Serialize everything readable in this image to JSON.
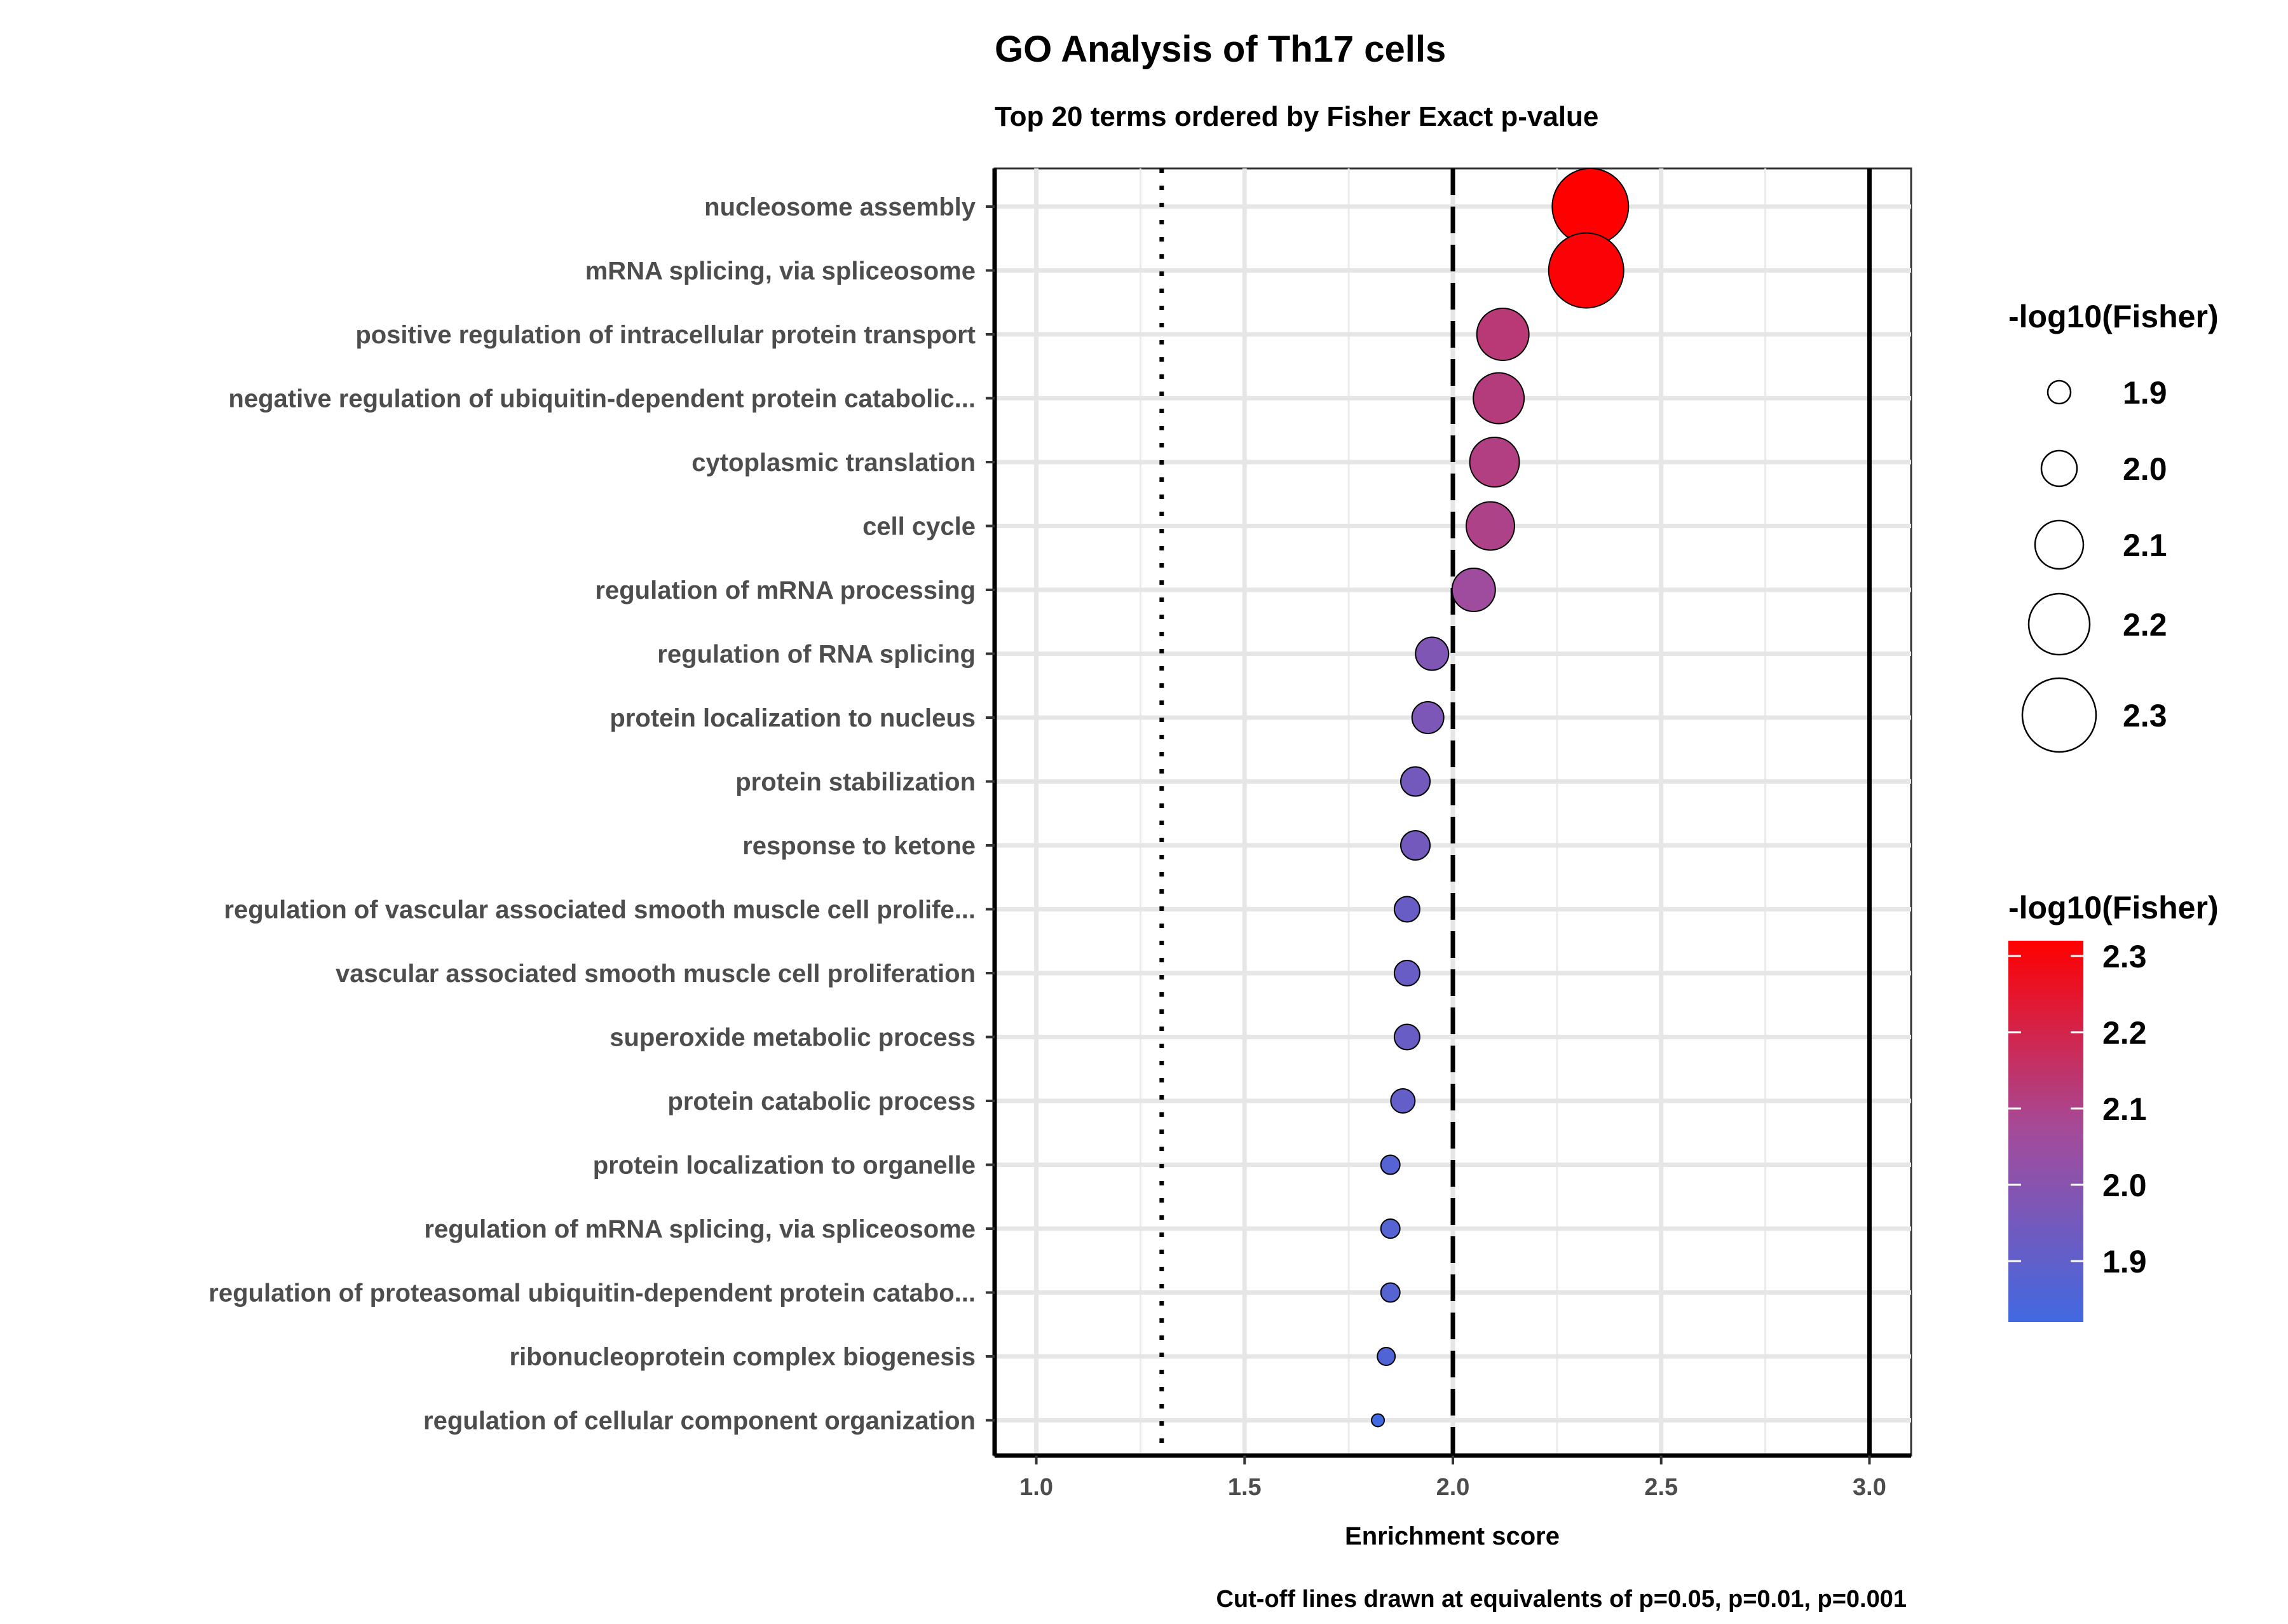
{
  "chart_data": {
    "type": "scatter",
    "title": "GO Analysis of Th17 cells",
    "subtitle": "Top 20 terms ordered by Fisher Exact p-value",
    "xlabel": "Enrichment score",
    "caption": "Cut-off lines drawn at equivalents of p=0.05, p=0.01, p=0.001",
    "xlim": [
      0.9,
      3.1
    ],
    "x_ticks": [
      1.0,
      1.5,
      2.0,
      2.5,
      3.0
    ],
    "x_tick_labels": [
      "1.0",
      "1.5",
      "2.0",
      "2.5",
      "3.0"
    ],
    "grid": true,
    "cutoff_lines": [
      {
        "p": 0.05,
        "x": 1.301,
        "style": "dotted"
      },
      {
        "p": 0.01,
        "x": 2.0,
        "style": "dashed"
      },
      {
        "p": 0.001,
        "x": 3.0,
        "style": "solid"
      }
    ],
    "terms": [
      {
        "label": "nucleosome assembly",
        "x": 2.33,
        "fisher": 2.32
      },
      {
        "label": "mRNA splicing, via spliceosome",
        "x": 2.32,
        "fisher": 2.31
      },
      {
        "label": "positive regulation of intracellular protein transport",
        "x": 2.12,
        "fisher": 2.13
      },
      {
        "label": "negative regulation of ubiquitin-dependent protein catabolic...",
        "x": 2.11,
        "fisher": 2.12
      },
      {
        "label": "cytoplasmic translation",
        "x": 2.1,
        "fisher": 2.11
      },
      {
        "label": "cell cycle",
        "x": 2.09,
        "fisher": 2.1
      },
      {
        "label": "regulation of mRNA processing",
        "x": 2.05,
        "fisher": 2.06
      },
      {
        "label": "regulation of RNA splicing",
        "x": 1.95,
        "fisher": 1.98
      },
      {
        "label": "protein localization to nucleus",
        "x": 1.94,
        "fisher": 1.97
      },
      {
        "label": "protein stabilization",
        "x": 1.91,
        "fisher": 1.95
      },
      {
        "label": "response to ketone",
        "x": 1.91,
        "fisher": 1.95
      },
      {
        "label": "regulation of vascular associated smooth muscle cell prolife...",
        "x": 1.89,
        "fisher": 1.92
      },
      {
        "label": "vascular associated smooth muscle cell proliferation",
        "x": 1.89,
        "fisher": 1.92
      },
      {
        "label": "superoxide metabolic process",
        "x": 1.89,
        "fisher": 1.92
      },
      {
        "label": "protein catabolic process",
        "x": 1.88,
        "fisher": 1.91
      },
      {
        "label": "protein localization to organelle",
        "x": 1.85,
        "fisher": 1.87
      },
      {
        "label": "regulation of mRNA splicing, via spliceosome",
        "x": 1.85,
        "fisher": 1.87
      },
      {
        "label": "regulation of proteasomal ubiquitin-dependent protein catabo...",
        "x": 1.85,
        "fisher": 1.87
      },
      {
        "label": "ribonucleoprotein complex biogenesis",
        "x": 1.84,
        "fisher": 1.86
      },
      {
        "label": "regulation of cellular component organization",
        "x": 1.82,
        "fisher": 1.82
      }
    ],
    "size_legend": {
      "title": "-log10(Fisher)",
      "values": [
        1.9,
        2.0,
        2.1,
        2.2,
        2.3
      ],
      "labels": [
        "1.9",
        "2.0",
        "2.1",
        "2.2",
        "2.3"
      ]
    },
    "color_legend": {
      "title": "-log10(Fisher)",
      "range": [
        1.82,
        2.32
      ],
      "ticks": [
        1.9,
        2.0,
        2.1,
        2.2,
        2.3
      ],
      "tick_labels": [
        "1.9",
        "2.0",
        "2.1",
        "2.2",
        "2.3"
      ],
      "low_color": "#4169e1",
      "high_color": "#ff0000"
    }
  }
}
